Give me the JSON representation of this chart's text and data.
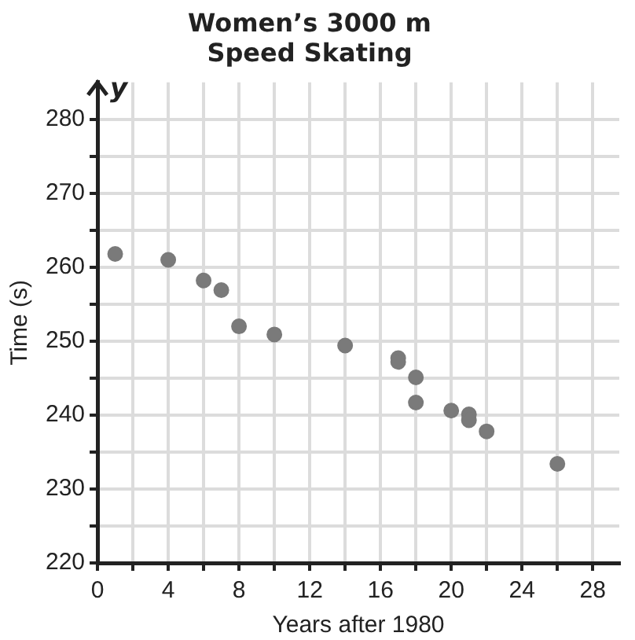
{
  "chart_data": {
    "type": "scatter",
    "title": "Women’s 3000 m\nSpeed Skating",
    "xlabel": "Years after 1980",
    "ylabel": "Time (s)",
    "annotations": [
      "y"
    ],
    "series": [
      {
        "color": "#7a7a7a",
        "x": [
          1,
          4,
          6,
          7,
          8,
          10,
          14,
          17,
          17,
          18,
          18,
          20,
          21,
          21,
          22,
          26
        ],
        "values": [
          261.8,
          261,
          258.2,
          256.9,
          252,
          250.9,
          249.4,
          247.7,
          247.2,
          245.1,
          241.7,
          240.6,
          240.1,
          239.3,
          237.8,
          233.4
        ]
      }
    ],
    "xlim": [
      0,
      29.5
    ],
    "ylim": [
      220,
      285
    ],
    "xticks": [
      0,
      {
        "value": 2,
        "label": null
      },
      4,
      {
        "value": 6,
        "label": null
      },
      8,
      {
        "value": 10,
        "label": null
      },
      12,
      {
        "value": 14,
        "label": null
      },
      16,
      {
        "value": 18,
        "label": null
      },
      20,
      {
        "value": 22,
        "label": null
      },
      24,
      {
        "value": 26,
        "label": null
      },
      28
    ],
    "yticks": [
      220,
      {
        "value": 225,
        "label": null
      },
      230,
      {
        "value": 235,
        "label": null
      },
      240,
      {
        "value": 245,
        "label": null
      },
      250,
      {
        "value": 255,
        "label": null
      },
      260,
      {
        "value": 265,
        "label": null
      },
      270,
      {
        "value": 275,
        "label": null
      },
      280
    ],
    "grid": true,
    "marker": "circle",
    "legend": false
  }
}
